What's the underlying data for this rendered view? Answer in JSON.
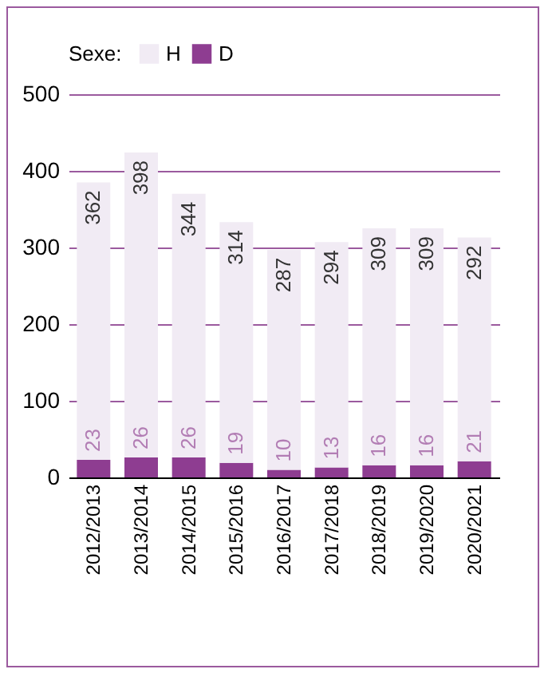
{
  "chart_data": {
    "type": "bar",
    "stacked": true,
    "legend_title": "Sexe:",
    "legend": "top",
    "grid": "y",
    "data_labels": true,
    "categories": [
      "2012/2013",
      "2013/2014",
      "2014/2015",
      "2015/2016",
      "2016/2017",
      "2017/2018",
      "2018/2019",
      "2019/2020",
      "2020/2021"
    ],
    "series": [
      {
        "name": "D",
        "color": "#8e3d91",
        "values": [
          23,
          26,
          26,
          19,
          10,
          13,
          16,
          16,
          21
        ]
      },
      {
        "name": "H",
        "color": "#f1ebf4",
        "values": [
          362,
          398,
          344,
          314,
          287,
          294,
          309,
          309,
          292
        ]
      }
    ],
    "ylim": [
      0,
      500
    ],
    "yticks": [
      0,
      100,
      200,
      300,
      400,
      500
    ]
  }
}
